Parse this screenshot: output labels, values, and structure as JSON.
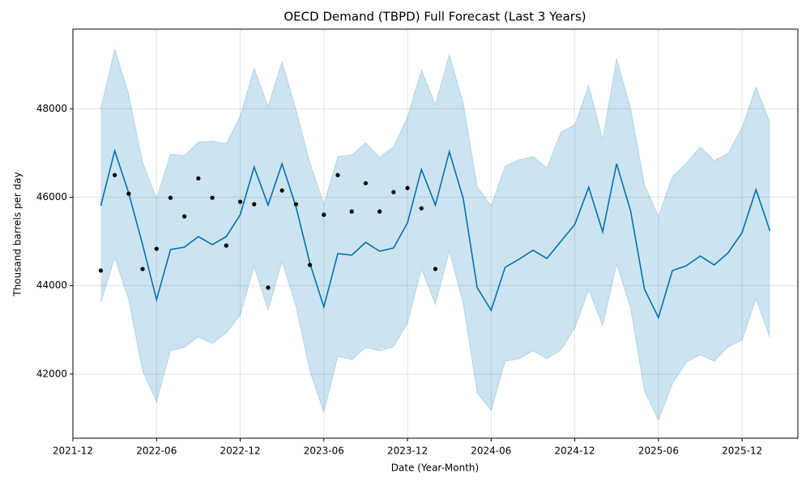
{
  "chart_data": {
    "type": "line",
    "title": "OECD Demand (TBPD) Full Forecast (Last 3 Years)",
    "x_label": "Date (Year-Month)",
    "y_label": "Thousand barrels per day",
    "x": [
      "2022-02",
      "2022-03",
      "2022-04",
      "2022-05",
      "2022-06",
      "2022-07",
      "2022-08",
      "2022-09",
      "2022-10",
      "2022-11",
      "2022-12",
      "2023-01",
      "2023-02",
      "2023-03",
      "2023-04",
      "2023-05",
      "2023-06",
      "2023-07",
      "2023-08",
      "2023-09",
      "2023-10",
      "2023-11",
      "2023-12",
      "2024-01",
      "2024-02",
      "2024-03",
      "2024-04",
      "2024-05",
      "2024-06",
      "2024-07",
      "2024-08",
      "2024-09",
      "2024-10",
      "2024-11",
      "2024-12",
      "2025-01",
      "2025-02",
      "2025-03",
      "2025-04",
      "2025-05",
      "2025-06",
      "2025-07",
      "2025-08",
      "2025-09",
      "2025-10",
      "2025-11",
      "2025-12",
      "2026-01",
      "2026-02"
    ],
    "series": [
      {
        "style": "line",
        "color": "#0072B2",
        "values": [
          45804,
          47048,
          46097,
          44926,
          43681,
          44816,
          44870,
          45109,
          44926,
          45109,
          45603,
          46682,
          45822,
          46756,
          45786,
          44505,
          43517,
          44724,
          44688,
          44980,
          44779,
          44852,
          45420,
          46628,
          45822,
          47030,
          45969,
          43955,
          43443,
          44413,
          44597,
          44800,
          44615,
          45000,
          45383,
          46225,
          45218,
          46756,
          45694,
          43919,
          43278,
          44340,
          44450,
          44670,
          44468,
          44743,
          45200,
          46170,
          45237
        ]
      },
      {
        "style": "points",
        "color": "#000000",
        "values": [
          44340,
          46500,
          46079,
          44377,
          44834,
          45987,
          45566,
          46426,
          45987,
          44907,
          45896,
          45841,
          43955,
          46152,
          45841,
          44468,
          45603,
          46500,
          45676,
          46316,
          45676,
          46115,
          46207,
          45749,
          44377,
          null,
          null,
          null,
          null,
          null,
          null,
          null,
          null,
          null,
          null,
          null,
          null,
          null,
          null,
          null,
          null,
          null,
          null,
          null,
          null,
          null,
          null,
          null,
          null
        ]
      }
    ],
    "band": {
      "color": "#0072B2",
      "upper": [
        48000,
        49354,
        48329,
        46792,
        45969,
        46975,
        46939,
        47250,
        47268,
        47213,
        47835,
        48915,
        48055,
        49061,
        47982,
        46774,
        45841,
        46920,
        46957,
        47231,
        46902,
        47140,
        47817,
        48878,
        48092,
        49226,
        48128,
        46243,
        45804,
        46701,
        46847,
        46920,
        46664,
        47469,
        47634,
        48531,
        47305,
        49135,
        48018,
        46280,
        45566,
        46463,
        46774,
        47140,
        46829,
        46994,
        47579,
        48494,
        47689
      ],
      "lower": [
        43608,
        44633,
        43681,
        42071,
        41375,
        42528,
        42601,
        42840,
        42693,
        42931,
        43334,
        44432,
        43443,
        44541,
        43535,
        42071,
        41138,
        42400,
        42327,
        42601,
        42528,
        42620,
        43151,
        44377,
        43572,
        44779,
        43590,
        41577,
        41174,
        42290,
        42345,
        42528,
        42345,
        42547,
        43041,
        43901,
        43096,
        44486,
        43498,
        41613,
        40955,
        41779,
        42272,
        42437,
        42290,
        42620,
        42766,
        43700,
        42821
      ]
    },
    "xlim": [
      "2021-12",
      "2026-04"
    ],
    "xticks": [
      "2021-12",
      "2022-06",
      "2022-12",
      "2023-06",
      "2023-12",
      "2024-06",
      "2024-12",
      "2025-06",
      "2025-12"
    ],
    "ylim": [
      40550,
      49800
    ],
    "yticks": [
      42000,
      44000,
      46000,
      48000
    ],
    "grid": true
  }
}
